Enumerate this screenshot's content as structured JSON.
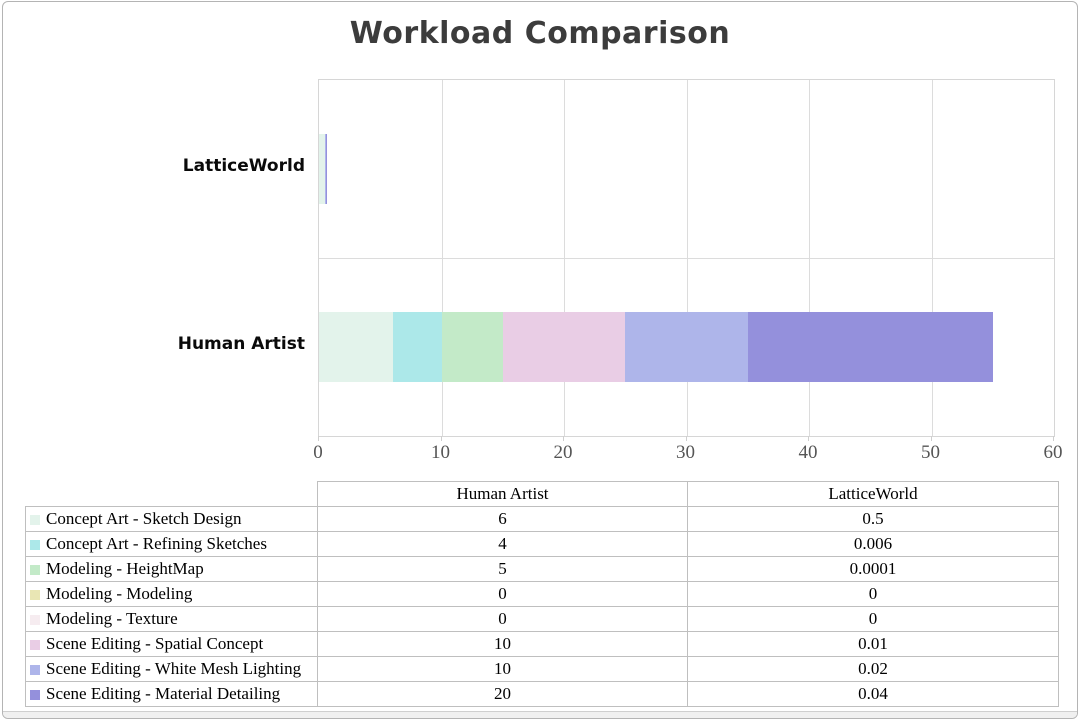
{
  "chart_data": {
    "type": "bar",
    "orientation": "horizontal",
    "stacked": true,
    "title": "Workload Comparison",
    "categories": [
      "LatticeWorld",
      "Human Artist"
    ],
    "series": [
      {
        "name": "Concept Art - Sketch Design",
        "color": "#e3f3eb",
        "values": [
          0.5,
          6
        ]
      },
      {
        "name": "Concept Art - Refining Sketches",
        "color": "#ace8e9",
        "values": [
          0.006,
          4
        ]
      },
      {
        "name": "Modeling - HeightMap",
        "color": "#c3eac8",
        "values": [
          0.0001,
          5
        ]
      },
      {
        "name": "Modeling - Modeling",
        "color": "#e9e6b4",
        "values": [
          0,
          0
        ]
      },
      {
        "name": "Modeling - Texture",
        "color": "#f6ecf0",
        "values": [
          0,
          0
        ]
      },
      {
        "name": "Scene Editing - Spatial Concept",
        "color": "#e9cde5",
        "values": [
          0.01,
          10
        ]
      },
      {
        "name": "Scene Editing - White Mesh Lighting",
        "color": "#aeb5ea",
        "values": [
          0.02,
          10
        ]
      },
      {
        "name": "Scene Editing - Material Detailing",
        "color": "#9490dc",
        "values": [
          0.04,
          20
        ]
      }
    ],
    "xlim": [
      0,
      60
    ],
    "xticks": [
      0,
      10,
      20,
      30,
      40,
      50,
      60
    ],
    "grid": "vertical",
    "legend_position": "table-below"
  },
  "table": {
    "header": [
      "",
      "Human Artist",
      "LatticeWorld"
    ],
    "rows": [
      {
        "label": "Concept Art - Sketch Design",
        "human": "6",
        "lattice": "0.5",
        "color": "#e3f3eb"
      },
      {
        "label": "Concept Art - Refining Sketches",
        "human": "4",
        "lattice": "0.006",
        "color": "#ace8e9"
      },
      {
        "label": "Modeling - HeightMap",
        "human": "5",
        "lattice": "0.0001",
        "color": "#c3eac8"
      },
      {
        "label": "Modeling - Modeling",
        "human": "0",
        "lattice": "0",
        "color": "#e9e6b4"
      },
      {
        "label": "Modeling - Texture",
        "human": "0",
        "lattice": "0",
        "color": "#f6ecf0"
      },
      {
        "label": "Scene Editing - Spatial Concept",
        "human": "10",
        "lattice": "0.01",
        "color": "#e9cde5"
      },
      {
        "label": "Scene Editing - White Mesh Lighting",
        "human": "10",
        "lattice": "0.02",
        "color": "#aeb5ea"
      },
      {
        "label": "Scene Editing - Material Detailing",
        "human": "20",
        "lattice": "0.04",
        "color": "#9490dc"
      }
    ]
  },
  "colors": {
    "title": "#3c3c3c",
    "grid": "#dcdcdc",
    "plot_border": "#d6d6d6",
    "table_border": "#bfbfbf",
    "tick_text": "#555555"
  }
}
